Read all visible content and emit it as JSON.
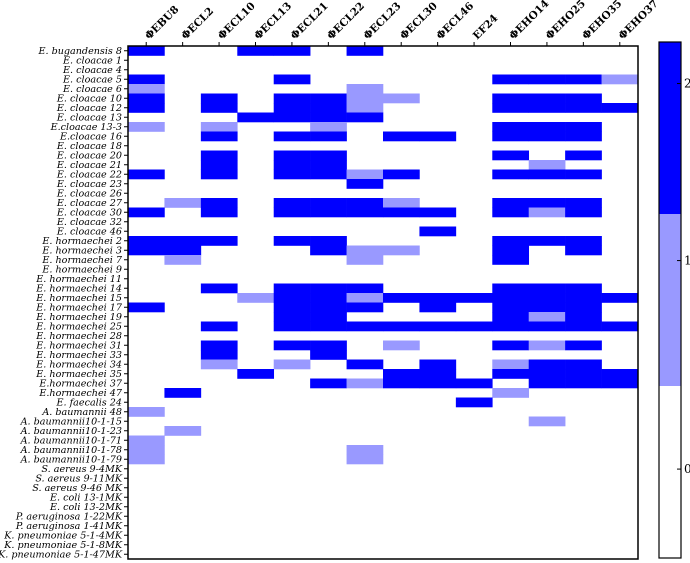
{
  "chart_data": {
    "type": "heatmap",
    "columns": [
      "ΦEBU8",
      "ΦECL2",
      "ΦECL10",
      "ΦECL13",
      "ΦECL21",
      "ΦECL22",
      "ΦECL23",
      "ΦECL30",
      "ΦECL46",
      "EF24",
      "ΦEHO14",
      "ΦEHO25",
      "ΦEHO35",
      "ΦEHO37"
    ],
    "rows": [
      "E. bugandensis 8",
      "E. cloacae 1",
      "E. cloacae 4",
      "E. cloacae 5",
      "E. cloacae 6",
      "E. cloacae 10",
      "E. cloacae 12",
      "E. cloacae 13",
      "E.cloacae 13-3",
      "E.cloacae 16",
      "E. cloacae 18",
      "E. cloacae 20",
      "E. cloacae 21",
      "E. cloacae 22",
      "E. cloacae 23",
      "E. cloacae 26",
      "E. cloacae 27",
      "E. cloacae 30",
      "E. cloacae 32",
      "E. cloacae 46",
      "E. hormaechei 2",
      "E. hormaechei 3",
      "E. hormaechei 7",
      "E. hormaechei 9",
      "E. hormaechei 11",
      "E. hormaechei 14",
      "E. hormaechei 15",
      "E. hormaechei 17",
      "E. hormaechei 19",
      "E. hormaechei 25",
      "E. hormaechei 28",
      "E. hormaechei 31",
      "E. hormaechei 33",
      "E. hormaechei 34",
      "E. hormaechei 35",
      "E.hormaechei 37",
      "E.hormaechei 47",
      "E. faecalis 24",
      "A. baumannii 48",
      "A. baumannii10-1-15",
      "A. baumannii10-1-23",
      "A. baumannii10-1-71",
      "A. baumannii10-1-78",
      "A. baumannii10-1-79",
      "S. aereus 9-4MK",
      "S. aereus 9-11MK",
      "S. aereus 9-46 MK",
      "E. coli 13-1MK",
      "E. coli 13-2MK",
      "P. aeruginosa 1-22MK",
      "P. aeruginosa 1-41MK",
      "K. pneumoniae 5-1-4MK",
      "K. pneumoniae 5-1-8MK",
      "K. pneumoniae 5-1-47MK"
    ],
    "values": [
      [
        2,
        0,
        0,
        2,
        2,
        0,
        2,
        0,
        0,
        0,
        0,
        0,
        0,
        0
      ],
      [
        0,
        0,
        0,
        0,
        0,
        0,
        0,
        0,
        0,
        0,
        0,
        0,
        0,
        0
      ],
      [
        0,
        0,
        0,
        0,
        0,
        0,
        0,
        0,
        0,
        0,
        0,
        0,
        0,
        0
      ],
      [
        2,
        0,
        0,
        0,
        2,
        0,
        0,
        0,
        0,
        0,
        2,
        2,
        2,
        1
      ],
      [
        1,
        0,
        0,
        0,
        0,
        0,
        1,
        0,
        0,
        0,
        0,
        0,
        0,
        0
      ],
      [
        2,
        0,
        2,
        0,
        2,
        2,
        1,
        1,
        0,
        0,
        2,
        2,
        2,
        0
      ],
      [
        2,
        0,
        2,
        0,
        2,
        2,
        1,
        0,
        0,
        0,
        2,
        2,
        2,
        2
      ],
      [
        0,
        0,
        0,
        2,
        2,
        2,
        2,
        0,
        0,
        0,
        0,
        0,
        0,
        0
      ],
      [
        1,
        0,
        1,
        0,
        0,
        1,
        0,
        0,
        0,
        0,
        2,
        2,
        2,
        0
      ],
      [
        0,
        0,
        2,
        0,
        2,
        2,
        0,
        2,
        2,
        0,
        2,
        2,
        2,
        0
      ],
      [
        0,
        0,
        0,
        0,
        0,
        0,
        0,
        0,
        0,
        0,
        0,
        0,
        0,
        0
      ],
      [
        0,
        0,
        2,
        0,
        2,
        2,
        0,
        0,
        0,
        0,
        2,
        0,
        2,
        0
      ],
      [
        0,
        0,
        2,
        0,
        2,
        2,
        0,
        0,
        0,
        0,
        0,
        1,
        0,
        0
      ],
      [
        2,
        0,
        2,
        0,
        2,
        2,
        1,
        2,
        0,
        0,
        2,
        2,
        2,
        0
      ],
      [
        0,
        0,
        0,
        0,
        0,
        0,
        2,
        0,
        0,
        0,
        0,
        0,
        0,
        0
      ],
      [
        0,
        0,
        0,
        0,
        0,
        0,
        0,
        0,
        0,
        0,
        0,
        0,
        0,
        0
      ],
      [
        0,
        1,
        2,
        0,
        2,
        2,
        2,
        1,
        0,
        0,
        2,
        2,
        2,
        0
      ],
      [
        2,
        0,
        2,
        0,
        2,
        2,
        2,
        2,
        2,
        0,
        2,
        1,
        2,
        0
      ],
      [
        0,
        0,
        0,
        0,
        0,
        0,
        0,
        0,
        0,
        0,
        0,
        0,
        0,
        0
      ],
      [
        0,
        0,
        0,
        0,
        0,
        0,
        0,
        0,
        2,
        0,
        0,
        0,
        0,
        0
      ],
      [
        2,
        2,
        2,
        0,
        2,
        2,
        0,
        0,
        0,
        0,
        2,
        2,
        2,
        0
      ],
      [
        2,
        2,
        0,
        0,
        0,
        2,
        1,
        1,
        0,
        0,
        2,
        0,
        2,
        0
      ],
      [
        0,
        1,
        0,
        0,
        0,
        0,
        1,
        0,
        0,
        0,
        2,
        0,
        0,
        0
      ],
      [
        0,
        0,
        0,
        0,
        0,
        0,
        0,
        0,
        0,
        0,
        0,
        0,
        0,
        0
      ],
      [
        0,
        0,
        0,
        0,
        0,
        0,
        0,
        0,
        0,
        0,
        0,
        0,
        0,
        0
      ],
      [
        0,
        0,
        2,
        0,
        2,
        2,
        2,
        0,
        0,
        0,
        2,
        2,
        2,
        0
      ],
      [
        0,
        0,
        0,
        1,
        2,
        2,
        1,
        2,
        2,
        2,
        2,
        2,
        2,
        2
      ],
      [
        2,
        0,
        0,
        0,
        2,
        2,
        2,
        0,
        2,
        0,
        2,
        2,
        2,
        0
      ],
      [
        0,
        0,
        0,
        0,
        2,
        2,
        0,
        0,
        0,
        0,
        2,
        1,
        2,
        0
      ],
      [
        0,
        0,
        2,
        0,
        2,
        2,
        2,
        2,
        2,
        2,
        2,
        2,
        2,
        2
      ],
      [
        0,
        0,
        0,
        0,
        0,
        0,
        0,
        0,
        0,
        0,
        0,
        0,
        0,
        0
      ],
      [
        0,
        0,
        2,
        0,
        2,
        2,
        0,
        1,
        0,
        0,
        2,
        1,
        2,
        0
      ],
      [
        0,
        0,
        2,
        0,
        0,
        2,
        0,
        0,
        0,
        0,
        0,
        0,
        0,
        0
      ],
      [
        0,
        0,
        1,
        0,
        1,
        0,
        2,
        0,
        2,
        0,
        1,
        2,
        2,
        0
      ],
      [
        0,
        0,
        0,
        2,
        0,
        0,
        0,
        2,
        2,
        0,
        2,
        2,
        2,
        2
      ],
      [
        0,
        0,
        0,
        0,
        0,
        2,
        1,
        2,
        2,
        2,
        0,
        2,
        2,
        2
      ],
      [
        0,
        2,
        0,
        0,
        0,
        0,
        0,
        0,
        0,
        0,
        1,
        0,
        0,
        0
      ],
      [
        0,
        0,
        0,
        0,
        0,
        0,
        0,
        0,
        0,
        2,
        0,
        0,
        0,
        0
      ],
      [
        1,
        0,
        0,
        0,
        0,
        0,
        0,
        0,
        0,
        0,
        0,
        0,
        0,
        0
      ],
      [
        0,
        0,
        0,
        0,
        0,
        0,
        0,
        0,
        0,
        0,
        0,
        1,
        0,
        0
      ],
      [
        0,
        1,
        0,
        0,
        0,
        0,
        0,
        0,
        0,
        0,
        0,
        0,
        0,
        0
      ],
      [
        1,
        0,
        0,
        0,
        0,
        0,
        0,
        0,
        0,
        0,
        0,
        0,
        0,
        0
      ],
      [
        1,
        0,
        0,
        0,
        0,
        0,
        1,
        0,
        0,
        0,
        0,
        0,
        0,
        0
      ],
      [
        1,
        0,
        0,
        0,
        0,
        0,
        1,
        0,
        0,
        0,
        0,
        0,
        0,
        0
      ],
      [
        0,
        0,
        0,
        0,
        0,
        0,
        0,
        0,
        0,
        0,
        0,
        0,
        0,
        0
      ],
      [
        0,
        0,
        0,
        0,
        0,
        0,
        0,
        0,
        0,
        0,
        0,
        0,
        0,
        0
      ],
      [
        0,
        0,
        0,
        0,
        0,
        0,
        0,
        0,
        0,
        0,
        0,
        0,
        0,
        0
      ],
      [
        0,
        0,
        0,
        0,
        0,
        0,
        0,
        0,
        0,
        0,
        0,
        0,
        0,
        0
      ],
      [
        0,
        0,
        0,
        0,
        0,
        0,
        0,
        0,
        0,
        0,
        0,
        0,
        0,
        0
      ],
      [
        0,
        0,
        0,
        0,
        0,
        0,
        0,
        0,
        0,
        0,
        0,
        0,
        0,
        0
      ],
      [
        0,
        0,
        0,
        0,
        0,
        0,
        0,
        0,
        0,
        0,
        0,
        0,
        0,
        0
      ],
      [
        0,
        0,
        0,
        0,
        0,
        0,
        0,
        0,
        0,
        0,
        0,
        0,
        0,
        0
      ],
      [
        0,
        0,
        0,
        0,
        0,
        0,
        0,
        0,
        0,
        0,
        0,
        0,
        0,
        0
      ],
      [
        0,
        0,
        0,
        0,
        0,
        0,
        0,
        0,
        0,
        0,
        0,
        0,
        0,
        0
      ]
    ],
    "scale": {
      "levels": [
        0,
        1,
        2
      ],
      "tick_labels": [
        "0",
        "1",
        "2"
      ],
      "colors": [
        "#ffffff",
        "#9999ff",
        "#0000ff"
      ]
    },
    "grid": false,
    "legend": "colorbar-right"
  }
}
